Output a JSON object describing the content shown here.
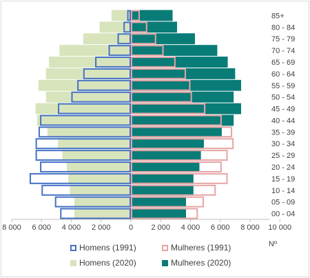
{
  "chart_data": {
    "type": "bar",
    "orientation": "horizontal-population-pyramid",
    "categories": [
      "00 - 04",
      "05 - 09",
      "10 - 14",
      "15 - 19",
      "20 - 24",
      "25 - 29",
      "30 - 34",
      "35 - 39",
      "40 - 44",
      "45 - 49",
      "50 - 54",
      "55 - 59",
      "60 - 64",
      "65 - 69",
      "70 - 74",
      "75 - 79",
      "80 - 84",
      "85+"
    ],
    "series": [
      {
        "name": "Homens (1991)",
        "side": "left",
        "style": "outline",
        "color": "#4472c4",
        "values": [
          4750,
          5100,
          6000,
          6800,
          6100,
          6400,
          6400,
          6200,
          6100,
          4900,
          4000,
          3600,
          3200,
          2400,
          1500,
          900,
          500,
          250
        ]
      },
      {
        "name": "Mulheres (1991)",
        "side": "right",
        "style": "outline",
        "color": "#e6a4a4",
        "values": [
          4500,
          4900,
          5700,
          6500,
          6100,
          6500,
          6900,
          6800,
          6100,
          5000,
          4100,
          4000,
          3700,
          3000,
          2200,
          1700,
          1100,
          600
        ]
      },
      {
        "name": "Homens (2020)",
        "side": "left",
        "style": "filled",
        "color": "#d8e4bc",
        "values": [
          3800,
          3800,
          4100,
          4200,
          4300,
          4600,
          4900,
          5600,
          6300,
          6400,
          5700,
          6200,
          5700,
          5500,
          4800,
          3200,
          2100,
          1300
        ]
      },
      {
        "name": "Mulheres (2020)",
        "side": "right",
        "style": "filled",
        "color": "#0a7c78",
        "values": [
          3700,
          3700,
          4200,
          4200,
          4600,
          4700,
          4900,
          6100,
          6900,
          7400,
          6900,
          7400,
          7000,
          6500,
          5800,
          4300,
          3100,
          2800
        ]
      }
    ],
    "xticks": [
      "8 000",
      "6 000",
      "4 000",
      "2 000",
      "0",
      "2 000",
      "4 000",
      "6 000",
      "8 000",
      "10 000"
    ],
    "xlim_left": 8000,
    "xlim_right": 10000,
    "xlabel": "Nº",
    "grid": false,
    "legend_position": "bottom"
  }
}
